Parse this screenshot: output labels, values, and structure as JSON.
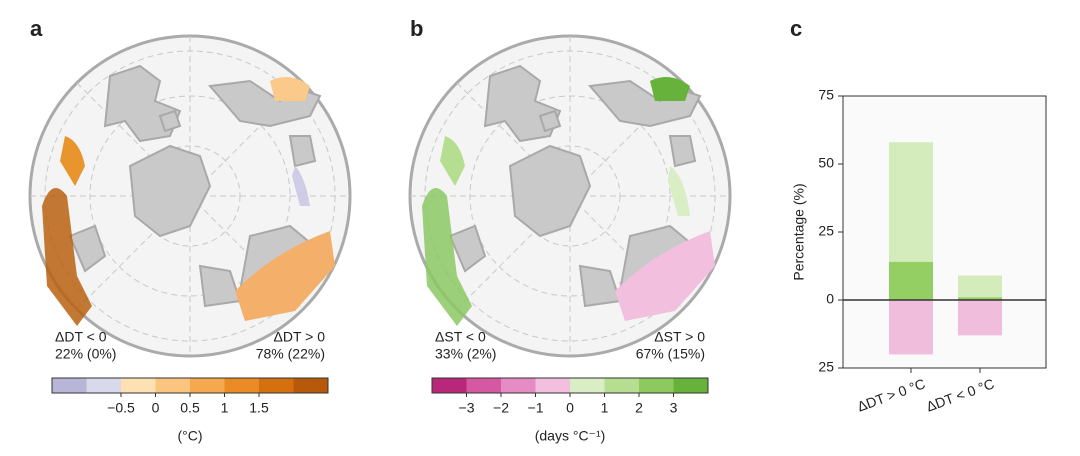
{
  "maps": [
    {
      "label": "a",
      "neg_label": "ΔDT < 0",
      "neg_share": "22% (0%)",
      "neg_color": "#9d9acb",
      "pos_label": "ΔDT > 0",
      "pos_share": "78% (22%)",
      "pos_color": "#e8952d",
      "colorbar": {
        "label": "(°C)",
        "lim": [
          -1.5,
          2.5
        ],
        "ticks": [
          {
            "value": -0.5,
            "label": "−0.5"
          },
          0,
          0.5,
          1,
          1.5
        ],
        "colors": [
          "#b8b5d8",
          "#d9d9ec",
          "#fde0b4",
          "#fbc47f",
          "#f6a84e",
          "#ea8b26",
          "#d5700f",
          "#b6590a"
        ]
      }
    },
    {
      "label": "b",
      "neg_label": "ΔST < 0",
      "neg_share": "33% (2%)",
      "neg_color": "#d35fa6",
      "pos_label": "ΔST > 0",
      "pos_share": "67% (15%)",
      "pos_color": "#8cc863",
      "colorbar": {
        "label": "(days °C⁻¹)",
        "lim": [
          -4,
          4
        ],
        "ticks": [
          {
            "value": -3,
            "label": "−3"
          },
          {
            "value": -2,
            "label": "−2"
          },
          {
            "value": -1,
            "label": "−1"
          },
          0,
          1,
          2,
          3
        ],
        "colors": [
          "#b8277a",
          "#d458a2",
          "#e58cc4",
          "#f2c0de",
          "#d9eec5",
          "#b6de91",
          "#8dc95e",
          "#67b23a"
        ]
      }
    }
  ],
  "chart_data": {
    "type": "bar",
    "label": "c",
    "ylabel": "Percentage (%)",
    "categories": [
      "ΔDT > 0 °C",
      "ΔDT < 0 °C"
    ],
    "series": [
      {
        "color": "#d4ebbb",
        "values": [
          58,
          9
        ]
      },
      {
        "color": "#94cf63",
        "values": [
          14,
          1
        ]
      },
      {
        "color": "#f0bddc",
        "values": [
          -20,
          -13
        ]
      }
    ],
    "ylim": [
      -25,
      75
    ],
    "yticks": [
      {
        "value": -25,
        "label": "25"
      },
      0,
      25,
      50,
      75
    ]
  }
}
